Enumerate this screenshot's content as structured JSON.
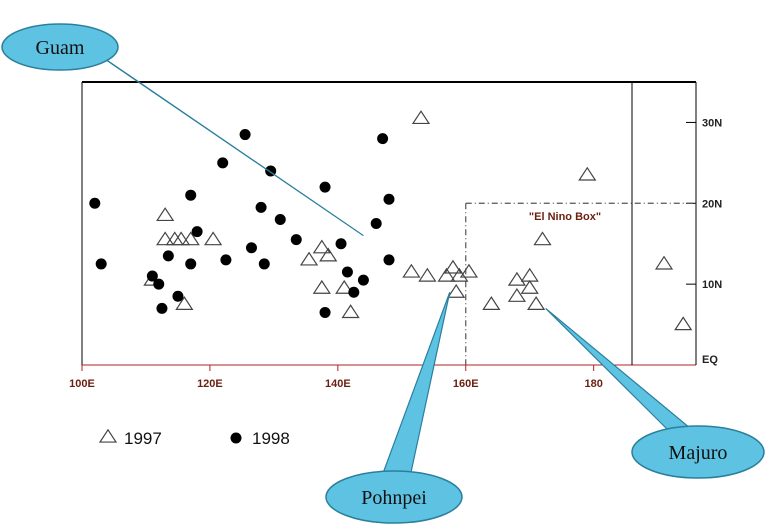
{
  "chart_data": {
    "type": "scatter",
    "x_ticks": [
      {
        "value": 100,
        "label": "100E"
      },
      {
        "value": 120,
        "label": "120E"
      },
      {
        "value": 140,
        "label": "140E"
      },
      {
        "value": 160,
        "label": "160E"
      },
      {
        "value": 180,
        "label": "180"
      }
    ],
    "y_ticks": [
      {
        "value": 0,
        "label": "EQ"
      },
      {
        "value": 10,
        "label": "10N"
      },
      {
        "value": 20,
        "label": "20N"
      },
      {
        "value": 30,
        "label": "30N"
      }
    ],
    "xlim": [
      100,
      196
    ],
    "ylim": [
      0,
      35
    ],
    "series": [
      {
        "name": "1997",
        "marker": "triangle-open",
        "color": "#444444",
        "points": [
          [
            113,
            18.5
          ],
          [
            113,
            15.5
          ],
          [
            114.5,
            15.5
          ],
          [
            115.5,
            15.5
          ],
          [
            117,
            15.5
          ],
          [
            120.5,
            15.5
          ],
          [
            111,
            10.5
          ],
          [
            116,
            7.5
          ],
          [
            135.5,
            13
          ],
          [
            137.5,
            14.5
          ],
          [
            138.5,
            13.5
          ],
          [
            137.5,
            9.5
          ],
          [
            141,
            9.5
          ],
          [
            142,
            6.5
          ],
          [
            153,
            30.5
          ],
          [
            151.5,
            11.5
          ],
          [
            154,
            11
          ],
          [
            157,
            11
          ],
          [
            158.5,
            9
          ],
          [
            159,
            11
          ],
          [
            160.5,
            11.5
          ],
          [
            158,
            12
          ],
          [
            164,
            7.5
          ],
          [
            168,
            10.5
          ],
          [
            168,
            8.5
          ],
          [
            170,
            11
          ],
          [
            170,
            9.5
          ],
          [
            171,
            7.5
          ],
          [
            172,
            15.5
          ],
          [
            179,
            23.5
          ],
          [
            191,
            12.5
          ],
          [
            194,
            5
          ]
        ]
      },
      {
        "name": "1998",
        "marker": "circle-filled",
        "color": "#000000",
        "points": [
          [
            102,
            20
          ],
          [
            103,
            12.5
          ],
          [
            111,
            11
          ],
          [
            112,
            10
          ],
          [
            112.5,
            7
          ],
          [
            113.5,
            13.5
          ],
          [
            115,
            8.5
          ],
          [
            117,
            12.5
          ],
          [
            117,
            21
          ],
          [
            118,
            16.5
          ],
          [
            122,
            25
          ],
          [
            122.5,
            13
          ],
          [
            125.5,
            28.5
          ],
          [
            126.5,
            14.5
          ],
          [
            128,
            19.5
          ],
          [
            128.5,
            12.5
          ],
          [
            129.5,
            24
          ],
          [
            131,
            18
          ],
          [
            133.5,
            15.5
          ],
          [
            138,
            22
          ],
          [
            138,
            6.5
          ],
          [
            140.5,
            15
          ],
          [
            141.5,
            11.5
          ],
          [
            142.5,
            9
          ],
          [
            144,
            10.5
          ],
          [
            146,
            17.5
          ],
          [
            147,
            28
          ],
          [
            148,
            20.5
          ],
          [
            148,
            13
          ]
        ]
      }
    ],
    "box": {
      "label": "\"El Nino Box\"",
      "x_from": 160,
      "y_top": 20
    }
  },
  "legend": [
    {
      "label": "1997",
      "marker": "triangle-open"
    },
    {
      "label": "1998",
      "marker": "circle-filled"
    }
  ],
  "callouts": [
    {
      "label": "Guam",
      "target": [
        144,
        16
      ]
    },
    {
      "label": "Pohnpei",
      "target": [
        157.5,
        9
      ]
    },
    {
      "label": "Majuro",
      "target": [
        172.5,
        7
      ]
    }
  ],
  "colors": {
    "callout_fill": "#5ec3e3",
    "callout_stroke": "#2a7f9c",
    "tick_x": "#6a1f10",
    "box_dash": "#555555"
  }
}
